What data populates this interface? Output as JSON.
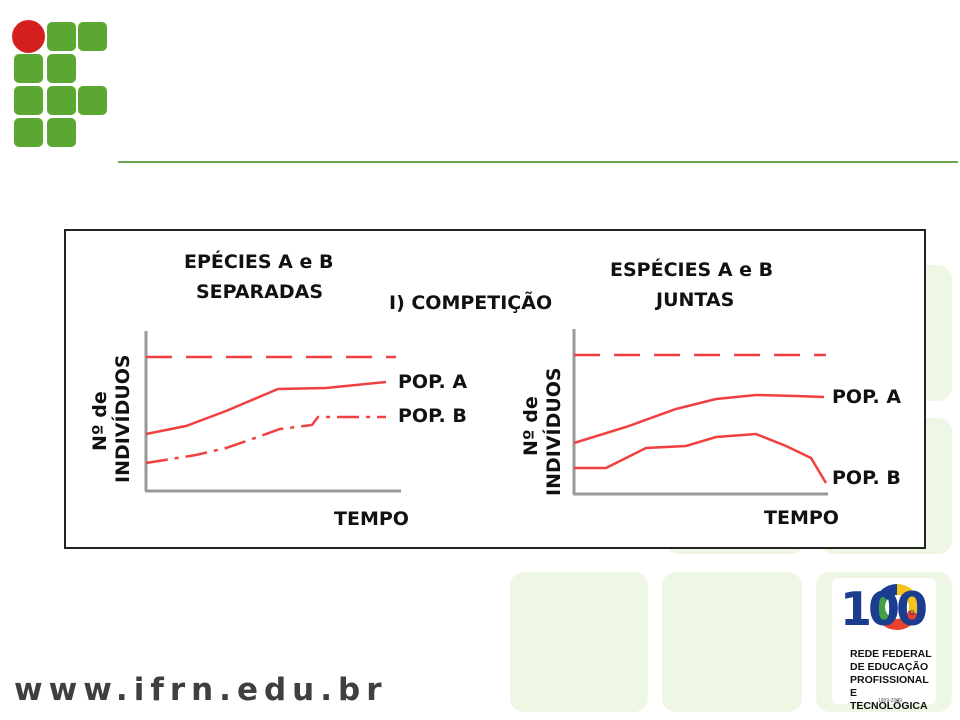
{
  "figure": {
    "left_panel": {
      "title_line1": "EPÉCIES A e B",
      "title_line2": "SEPARADAS",
      "ylabel_line1": "Nº de",
      "ylabel_line2": "INDIVÍDUOS",
      "xlabel": "TEMPO",
      "label_a": "POP. A",
      "label_b": "POP. B"
    },
    "center_title": "I) COMPETIÇÃO",
    "right_panel": {
      "title_line1": "ESPÉCIES A e B",
      "title_line2": "JUNTAS",
      "ylabel_line1": "Nº de",
      "ylabel_line2": "INDIVÍDUOS",
      "xlabel": "TEMPO",
      "label_a": "POP. A",
      "label_b": "POP. B"
    },
    "colors": {
      "curve": "#f04040",
      "axis": "#999999"
    }
  },
  "footer": {
    "url": "www.ifrn.edu.br",
    "badge_number": "100",
    "badge_anos": "A N O S",
    "badge_line1": "REDE FEDERAL",
    "badge_line2": "DE EDUCAÇÃO",
    "badge_line3": "PROFISSIONAL",
    "badge_line4": "E TECNOLÓGICA",
    "badge_years": "1909-2009"
  },
  "colors": {
    "logo_green": "#5aa832",
    "logo_red": "#d41f1f",
    "rule": "#6aa84f"
  }
}
